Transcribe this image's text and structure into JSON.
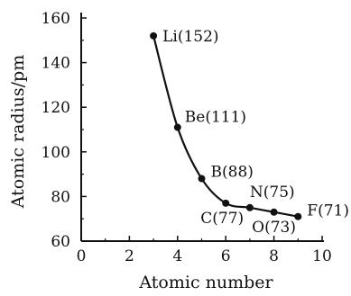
{
  "chart_data": {
    "type": "line",
    "title": "",
    "xlabel": "Atomic number",
    "ylabel": "Atomic radius/pm",
    "xlim": [
      0,
      10
    ],
    "ylim": [
      60,
      160
    ],
    "xticks": [
      0,
      2,
      4,
      6,
      8,
      10
    ],
    "yticks": [
      60,
      80,
      100,
      120,
      140,
      160
    ],
    "grid": false,
    "line_color": "#111111",
    "points": [
      {
        "x": 3,
        "y": 152,
        "label": "Li(152)"
      },
      {
        "x": 4,
        "y": 111,
        "label": "Be(111)"
      },
      {
        "x": 5,
        "y": 88,
        "label": "B(88)"
      },
      {
        "x": 6,
        "y": 77,
        "label": "C(77)"
      },
      {
        "x": 7,
        "y": 75,
        "label": "N(75)"
      },
      {
        "x": 8,
        "y": 73,
        "label": "O(73)"
      },
      {
        "x": 9,
        "y": 71,
        "label": "F(71)"
      }
    ]
  }
}
